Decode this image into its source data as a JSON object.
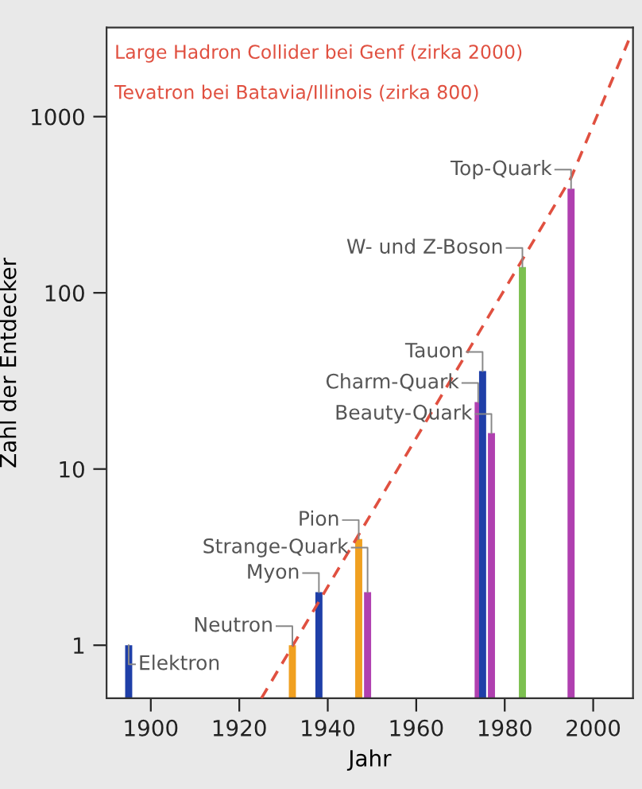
{
  "chart_data": {
    "type": "bar",
    "xlabel": "Jahr",
    "ylabel": "Zahl der Entdecker",
    "log": "y",
    "xlim": [
      1890,
      2009
    ],
    "ylim": [
      0.5,
      3200
    ],
    "xticks": [
      1900,
      1920,
      1940,
      1960,
      1980,
      2000
    ],
    "yticks": [
      1,
      10,
      100,
      1000
    ],
    "grid": false,
    "series": [
      {
        "x": [
          1895,
          1932,
          1938,
          1947,
          1949,
          1974,
          1975,
          1977,
          1984,
          1995
        ],
        "values": [
          1,
          1,
          2,
          4,
          2,
          24,
          36,
          16,
          140,
          390
        ],
        "colors": [
          "#1f3fa8",
          "#f0a020",
          "#1f3fa8",
          "#f0a020",
          "#b040b0",
          "#b040b0",
          "#1f3fa8",
          "#b040b0",
          "#7cc050",
          "#b040b0"
        ]
      },
      {
        "type": "line",
        "x": [
          1925,
          1995,
          2008
        ],
        "values": [
          0.5,
          450,
          2700
        ],
        "color": "#e05040",
        "line_style": "dashed"
      }
    ],
    "annotations": [
      {
        "text": "Elektron",
        "x": 1895,
        "y": 1
      },
      {
        "text": "Neutron",
        "x": 1932,
        "y": 1
      },
      {
        "text": "Myon",
        "x": 1938,
        "y": 2
      },
      {
        "text": "Pion",
        "x": 1947,
        "y": 4
      },
      {
        "text": "Strange-Quark",
        "x": 1949,
        "y": 2
      },
      {
        "text": "Charm-Quark",
        "x": 1974,
        "y": 24
      },
      {
        "text": "Tauon",
        "x": 1975,
        "y": 36
      },
      {
        "text": "Beauty-Quark",
        "x": 1977,
        "y": 16
      },
      {
        "text": "W- und Z-Boson",
        "x": 1984,
        "y": 140
      },
      {
        "text": "Top-Quark",
        "x": 1995,
        "y": 390
      },
      "Large Hadron Collider bei Genf (zirka 2000)",
      "Tevatron bei Batavia/Illinois (zirka 800)"
    ]
  }
}
